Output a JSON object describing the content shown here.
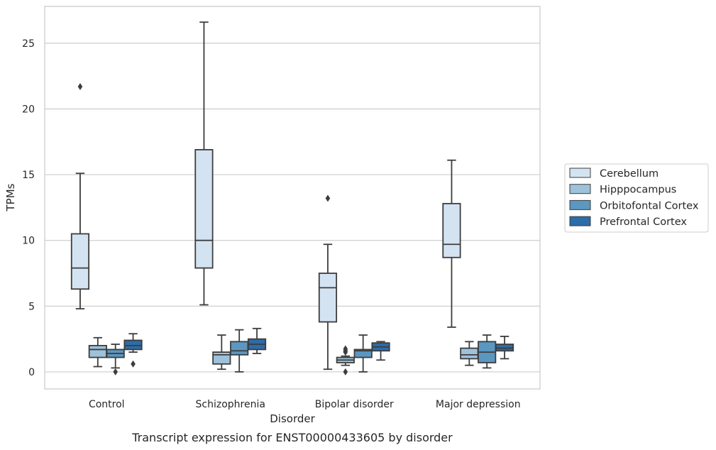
{
  "chart_data": {
    "type": "boxplot",
    "caption": "Transcript expression for ENST00000433605 by disorder",
    "xlabel": "Disorder",
    "ylabel": "TPMs",
    "ylim": [
      -1.3,
      27.8
    ],
    "yticks": [
      0,
      5,
      10,
      15,
      20,
      25
    ],
    "grid": true,
    "legend_position": "right",
    "categories": [
      "Control",
      "Schizophrenia",
      "Bipolar disorder",
      "Major depression"
    ],
    "series": [
      {
        "name": "Cerebellum",
        "color": "#d4e3f2",
        "boxes": [
          {
            "whislo": 4.8,
            "q1": 6.3,
            "med": 7.9,
            "q3": 10.5,
            "whishi": 15.1,
            "fliers": [
              21.7
            ]
          },
          {
            "whislo": 5.1,
            "q1": 7.9,
            "med": 10.0,
            "q3": 16.9,
            "whishi": 26.6,
            "fliers": []
          },
          {
            "whislo": 0.2,
            "q1": 3.8,
            "med": 6.4,
            "q3": 7.5,
            "whishi": 9.7,
            "fliers": [
              13.2
            ]
          },
          {
            "whislo": 3.4,
            "q1": 8.7,
            "med": 9.7,
            "q3": 12.8,
            "whishi": 16.1,
            "fliers": []
          }
        ]
      },
      {
        "name": "Hipppocampus",
        "color": "#9fc2db",
        "boxes": [
          {
            "whislo": 0.4,
            "q1": 1.1,
            "med": 1.7,
            "q3": 2.0,
            "whishi": 2.6,
            "fliers": []
          },
          {
            "whislo": 0.2,
            "q1": 0.6,
            "med": 1.3,
            "q3": 1.5,
            "whishi": 2.8,
            "fliers": []
          },
          {
            "whislo": 0.5,
            "q1": 0.7,
            "med": 0.9,
            "q3": 1.1,
            "whishi": 1.2,
            "fliers": [
              1.6,
              1.75,
              1.5,
              0.0
            ]
          },
          {
            "whislo": 0.5,
            "q1": 1.0,
            "med": 1.3,
            "q3": 1.8,
            "whishi": 2.3,
            "fliers": []
          }
        ]
      },
      {
        "name": "Orbitofontal Cortex",
        "color": "#5b97c1",
        "boxes": [
          {
            "whislo": 0.3,
            "q1": 1.1,
            "med": 1.4,
            "q3": 1.7,
            "whishi": 2.1,
            "fliers": [
              0.0
            ]
          },
          {
            "whislo": 0.0,
            "q1": 1.3,
            "med": 1.6,
            "q3": 2.3,
            "whishi": 3.2,
            "fliers": []
          },
          {
            "whislo": 0.0,
            "q1": 1.1,
            "med": 1.6,
            "q3": 1.7,
            "whishi": 2.8,
            "fliers": []
          },
          {
            "whislo": 0.3,
            "q1": 0.7,
            "med": 1.5,
            "q3": 2.3,
            "whishi": 2.8,
            "fliers": []
          }
        ]
      },
      {
        "name": "Prefrontal Cortex",
        "color": "#2c6ca9",
        "boxes": [
          {
            "whislo": 1.5,
            "q1": 1.7,
            "med": 2.0,
            "q3": 2.4,
            "whishi": 2.9,
            "fliers": [
              0.6
            ]
          },
          {
            "whislo": 1.4,
            "q1": 1.7,
            "med": 2.1,
            "q3": 2.5,
            "whishi": 3.3,
            "fliers": []
          },
          {
            "whislo": 0.9,
            "q1": 1.6,
            "med": 1.9,
            "q3": 2.2,
            "whishi": 2.3,
            "fliers": []
          },
          {
            "whislo": 1.0,
            "q1": 1.6,
            "med": 1.8,
            "q3": 2.1,
            "whishi": 2.7,
            "fliers": []
          }
        ]
      }
    ]
  }
}
